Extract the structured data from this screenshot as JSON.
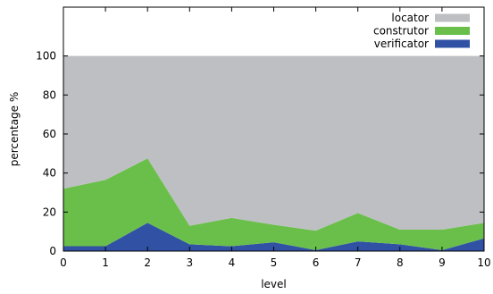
{
  "chart_data": {
    "type": "area",
    "stacked": true,
    "title": "",
    "xlabel": "level",
    "ylabel": "percentage %",
    "xlim": [
      0,
      10
    ],
    "ylim": [
      0,
      125
    ],
    "x_ticks": [
      0,
      1,
      2,
      3,
      4,
      5,
      6,
      7,
      8,
      9,
      10
    ],
    "y_ticks": [
      0,
      20,
      40,
      60,
      80,
      100
    ],
    "grid": false,
    "legend_position": "top-right",
    "x": [
      0,
      1,
      2,
      3,
      4,
      5,
      6,
      7,
      8,
      9,
      10
    ],
    "series": [
      {
        "name": "verificator",
        "color": "#3152a4",
        "values": [
          2.5,
          2.5,
          14.5,
          3.5,
          2.5,
          4.5,
          0.5,
          5,
          3.5,
          0.5,
          6.5
        ]
      },
      {
        "name": "construtor",
        "color": "#6abf4b",
        "values": [
          29.5,
          34,
          33,
          9.5,
          14.5,
          9,
          10,
          14.5,
          7.5,
          10.5,
          8
        ]
      },
      {
        "name": "locator",
        "color": "#bebfc3",
        "values": [
          68,
          63.5,
          52.5,
          87,
          83,
          86.5,
          89.5,
          80.5,
          89,
          89,
          85.5
        ]
      }
    ]
  }
}
